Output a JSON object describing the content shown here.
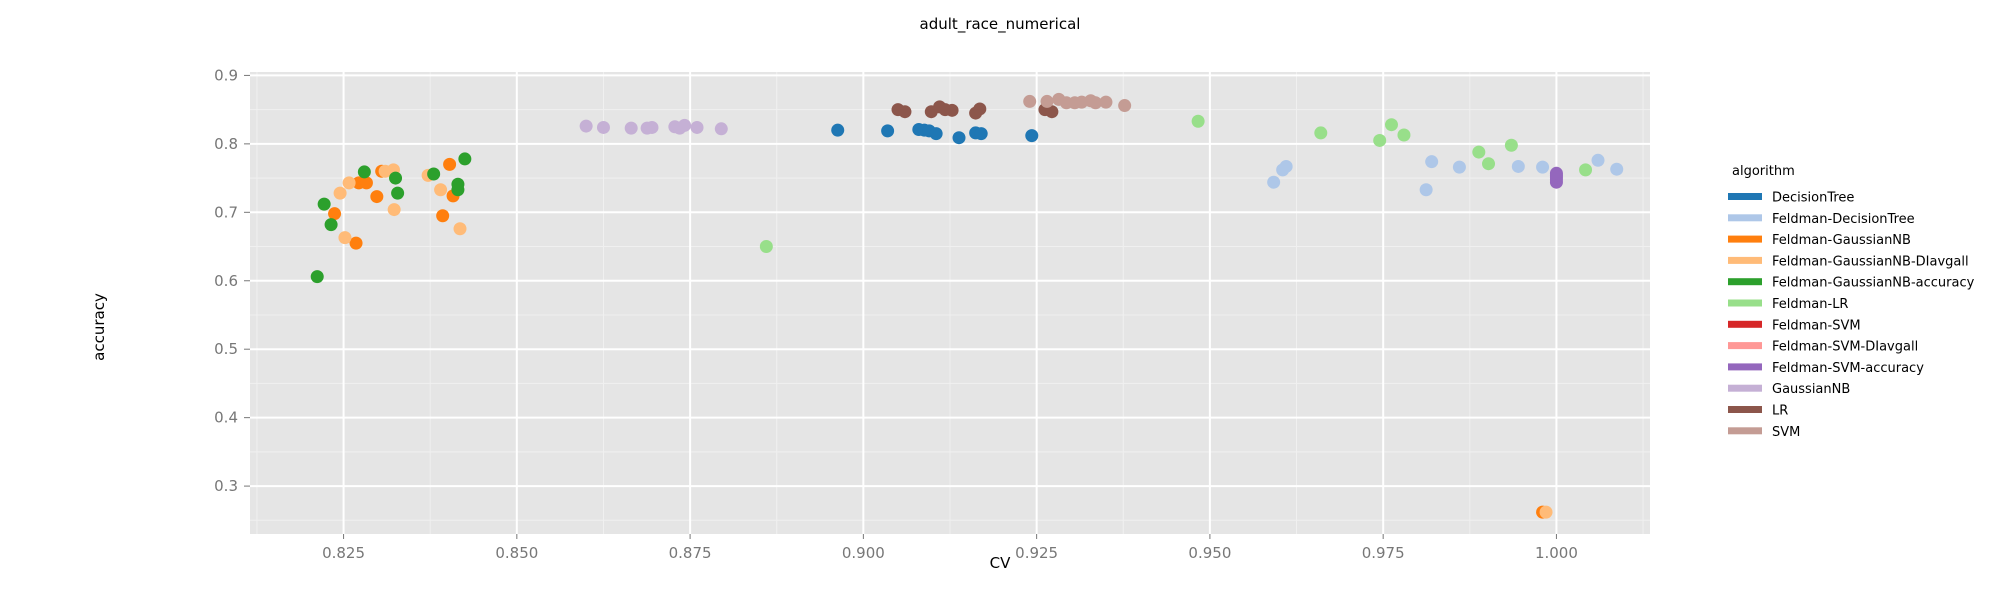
{
  "chart_data": {
    "type": "scatter",
    "title": "adult_race_numerical",
    "xlabel": "CV",
    "ylabel": "accuracy",
    "xlim": [
      0.8115,
      1.0135
    ],
    "ylim": [
      0.23,
      0.905
    ],
    "x_ticks": [
      0.825,
      0.85,
      0.875,
      0.9,
      0.925,
      0.95,
      0.975,
      1.0
    ],
    "x_tick_labels": [
      "0.825",
      "0.850",
      "0.875",
      "0.900",
      "0.925",
      "0.950",
      "0.975",
      "1.000"
    ],
    "y_ticks": [
      0.3,
      0.4,
      0.5,
      0.6,
      0.7,
      0.8,
      0.9
    ],
    "y_tick_labels": [
      "0.3",
      "0.4",
      "0.5",
      "0.6",
      "0.7",
      "0.8",
      "0.9"
    ],
    "grid": true,
    "background": "#e5e5e5",
    "legend": {
      "title": "algorithm",
      "position": "right"
    },
    "series": [
      {
        "name": "DecisionTree",
        "color": "#1f77b4",
        "points": [
          [
            0.8963,
            0.82
          ],
          [
            0.9035,
            0.819
          ],
          [
            0.908,
            0.821
          ],
          [
            0.9088,
            0.82
          ],
          [
            0.9095,
            0.819
          ],
          [
            0.9105,
            0.815
          ],
          [
            0.9138,
            0.809
          ],
          [
            0.9162,
            0.816
          ],
          [
            0.917,
            0.815
          ],
          [
            0.9243,
            0.812
          ]
        ]
      },
      {
        "name": "Feldman-DecisionTree",
        "color": "#aec7e8",
        "points": [
          [
            0.9592,
            0.744
          ],
          [
            0.9605,
            0.762
          ],
          [
            0.961,
            0.767
          ],
          [
            0.9812,
            0.733
          ],
          [
            0.982,
            0.774
          ],
          [
            0.986,
            0.766
          ],
          [
            0.9945,
            0.767
          ],
          [
            0.998,
            0.766
          ],
          [
            1.006,
            0.776
          ],
          [
            1.0087,
            0.763
          ]
        ]
      },
      {
        "name": "Feldman-GaussianNB",
        "color": "#ff7f0e",
        "points": [
          [
            0.8237,
            0.698
          ],
          [
            0.8268,
            0.655
          ],
          [
            0.8272,
            0.743
          ],
          [
            0.8283,
            0.743
          ],
          [
            0.8298,
            0.723
          ],
          [
            0.8305,
            0.76
          ],
          [
            0.8393,
            0.695
          ],
          [
            0.8403,
            0.77
          ],
          [
            0.8408,
            0.724
          ],
          [
            0.998,
            0.262
          ]
        ]
      },
      {
        "name": "Feldman-GaussianNB-DIavgall",
        "color": "#ffbb78",
        "points": [
          [
            0.8245,
            0.728
          ],
          [
            0.8252,
            0.663
          ],
          [
            0.8258,
            0.743
          ],
          [
            0.831,
            0.76
          ],
          [
            0.8322,
            0.762
          ],
          [
            0.8323,
            0.704
          ],
          [
            0.8372,
            0.754
          ],
          [
            0.839,
            0.733
          ],
          [
            0.8418,
            0.676
          ],
          [
            0.9985,
            0.262
          ]
        ]
      },
      {
        "name": "Feldman-GaussianNB-accuracy",
        "color": "#2ca02c",
        "points": [
          [
            0.8212,
            0.606
          ],
          [
            0.8222,
            0.712
          ],
          [
            0.8232,
            0.682
          ],
          [
            0.828,
            0.759
          ],
          [
            0.8325,
            0.75
          ],
          [
            0.8328,
            0.728
          ],
          [
            0.838,
            0.756
          ],
          [
            0.8415,
            0.733
          ],
          [
            0.8415,
            0.741
          ],
          [
            0.8425,
            0.778
          ]
        ]
      },
      {
        "name": "Feldman-LR",
        "color": "#98df8a",
        "points": [
          [
            0.886,
            0.65
          ],
          [
            0.9483,
            0.833
          ],
          [
            0.966,
            0.816
          ],
          [
            0.9745,
            0.805
          ],
          [
            0.9762,
            0.828
          ],
          [
            0.978,
            0.813
          ],
          [
            0.9888,
            0.788
          ],
          [
            0.9902,
            0.771
          ],
          [
            0.9935,
            0.798
          ],
          [
            1.0042,
            0.762
          ]
        ]
      },
      {
        "name": "Feldman-SVM",
        "color": "#d62728",
        "points": []
      },
      {
        "name": "Feldman-SVM-DIavgall",
        "color": "#ff9896",
        "points": []
      },
      {
        "name": "Feldman-SVM-accuracy",
        "color": "#9467bd",
        "points": [
          [
            1.0,
            0.744
          ],
          [
            1.0,
            0.748
          ],
          [
            1.0,
            0.751
          ],
          [
            1.0,
            0.754
          ],
          [
            1.0,
            0.757
          ]
        ]
      },
      {
        "name": "GaussianNB",
        "color": "#c5b0d5",
        "points": [
          [
            0.86,
            0.826
          ],
          [
            0.8625,
            0.824
          ],
          [
            0.8665,
            0.823
          ],
          [
            0.8688,
            0.823
          ],
          [
            0.8695,
            0.824
          ],
          [
            0.8728,
            0.825
          ],
          [
            0.8735,
            0.823
          ],
          [
            0.8742,
            0.827
          ],
          [
            0.876,
            0.824
          ],
          [
            0.8795,
            0.822
          ]
        ]
      },
      {
        "name": "LR",
        "color": "#8c564b",
        "points": [
          [
            0.905,
            0.85
          ],
          [
            0.906,
            0.847
          ],
          [
            0.9098,
            0.847
          ],
          [
            0.911,
            0.854
          ],
          [
            0.9118,
            0.85
          ],
          [
            0.9128,
            0.849
          ],
          [
            0.9162,
            0.845
          ],
          [
            0.9168,
            0.851
          ],
          [
            0.9262,
            0.85
          ],
          [
            0.9272,
            0.847
          ]
        ]
      },
      {
        "name": "SVM",
        "color": "#c49c94",
        "points": [
          [
            0.924,
            0.862
          ],
          [
            0.9265,
            0.862
          ],
          [
            0.9282,
            0.865
          ],
          [
            0.9293,
            0.86
          ],
          [
            0.9305,
            0.86
          ],
          [
            0.9315,
            0.861
          ],
          [
            0.9328,
            0.863
          ],
          [
            0.9335,
            0.86
          ],
          [
            0.935,
            0.861
          ],
          [
            0.9377,
            0.856
          ]
        ]
      }
    ]
  }
}
